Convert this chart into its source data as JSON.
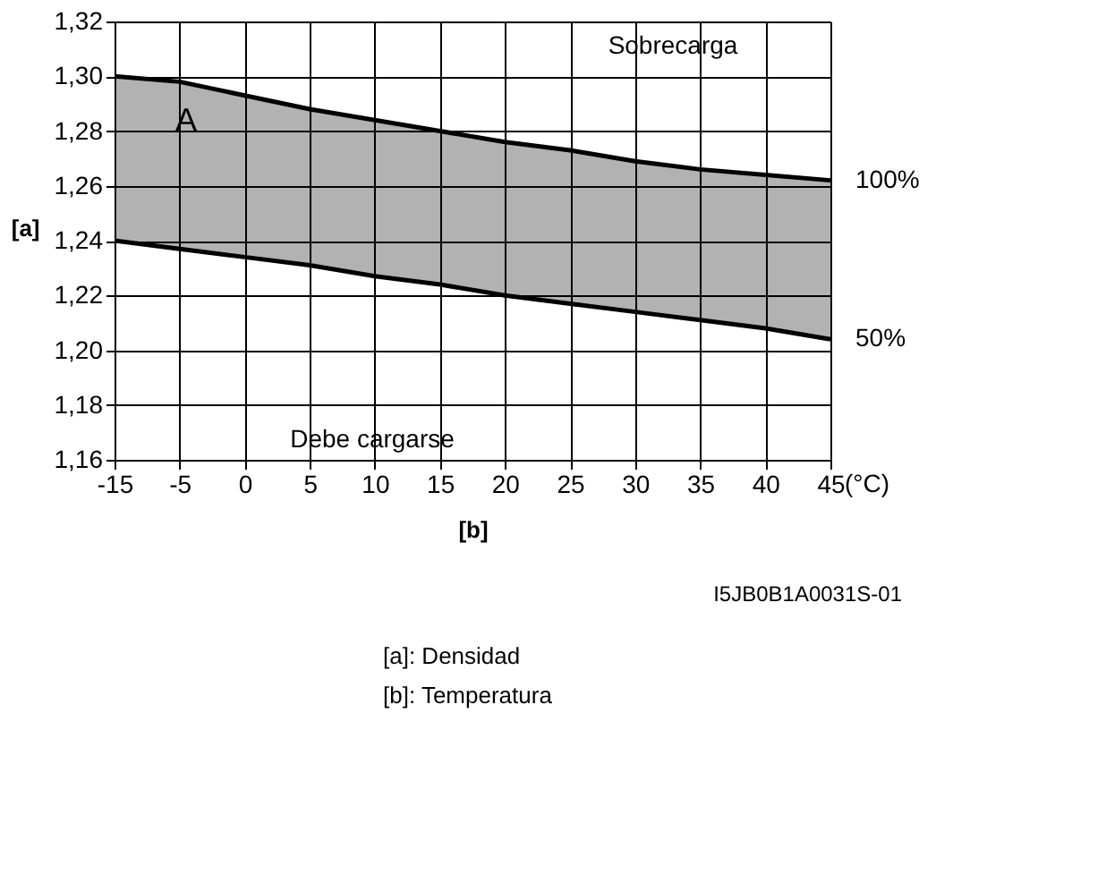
{
  "chart_data": {
    "type": "line",
    "xlabel": "[b]",
    "ylabel": "[a]",
    "categories": [
      "-15",
      "-5",
      "0",
      "5",
      "10",
      "15",
      "20",
      "25",
      "30",
      "35",
      "40",
      "45"
    ],
    "series": [
      {
        "name": "100%",
        "color": "#000000",
        "values": [
          1.3,
          1.298,
          1.293,
          1.288,
          1.284,
          1.28,
          1.276,
          1.273,
          1.269,
          1.266,
          1.264,
          1.262
        ],
        "lower": [
          1.24,
          1.237,
          1.234,
          1.231,
          1.227,
          1.224,
          1.22,
          1.217,
          1.214,
          1.211,
          1.208,
          1.204
        ],
        "upper": [
          1.3,
          1.298,
          1.293,
          1.288,
          1.284,
          1.28,
          1.276,
          1.273,
          1.269,
          1.266,
          1.264,
          1.262
        ]
      },
      {
        "name": "50%",
        "color": "#000000",
        "values": [
          1.24,
          1.237,
          1.234,
          1.231,
          1.227,
          1.224,
          1.22,
          1.217,
          1.214,
          1.211,
          1.208,
          1.204
        ]
      }
    ],
    "ylim": [
      1.16,
      1.32
    ],
    "yticks": [
      {
        "value": 1.16,
        "label": "1,16"
      },
      {
        "value": 1.18,
        "label": "1,18"
      },
      {
        "value": 1.2,
        "label": "1,20"
      },
      {
        "value": 1.22,
        "label": "1,22"
      },
      {
        "value": 1.24,
        "label": "1,24"
      },
      {
        "value": 1.26,
        "label": "1,26"
      },
      {
        "value": 1.28,
        "label": "1,28"
      },
      {
        "value": 1.3,
        "label": "1,30"
      },
      {
        "value": 1.32,
        "label": "1,32"
      }
    ],
    "grid": true,
    "legend": false,
    "marker": "none",
    "line_style": "solid",
    "annotations": [
      "Sobrecarga",
      "A",
      "Debe cargarse",
      "(°C)",
      "I5JB0B1A0031S-01",
      "[a]:  Densidad",
      "[b]:  Temperatura"
    ]
  }
}
